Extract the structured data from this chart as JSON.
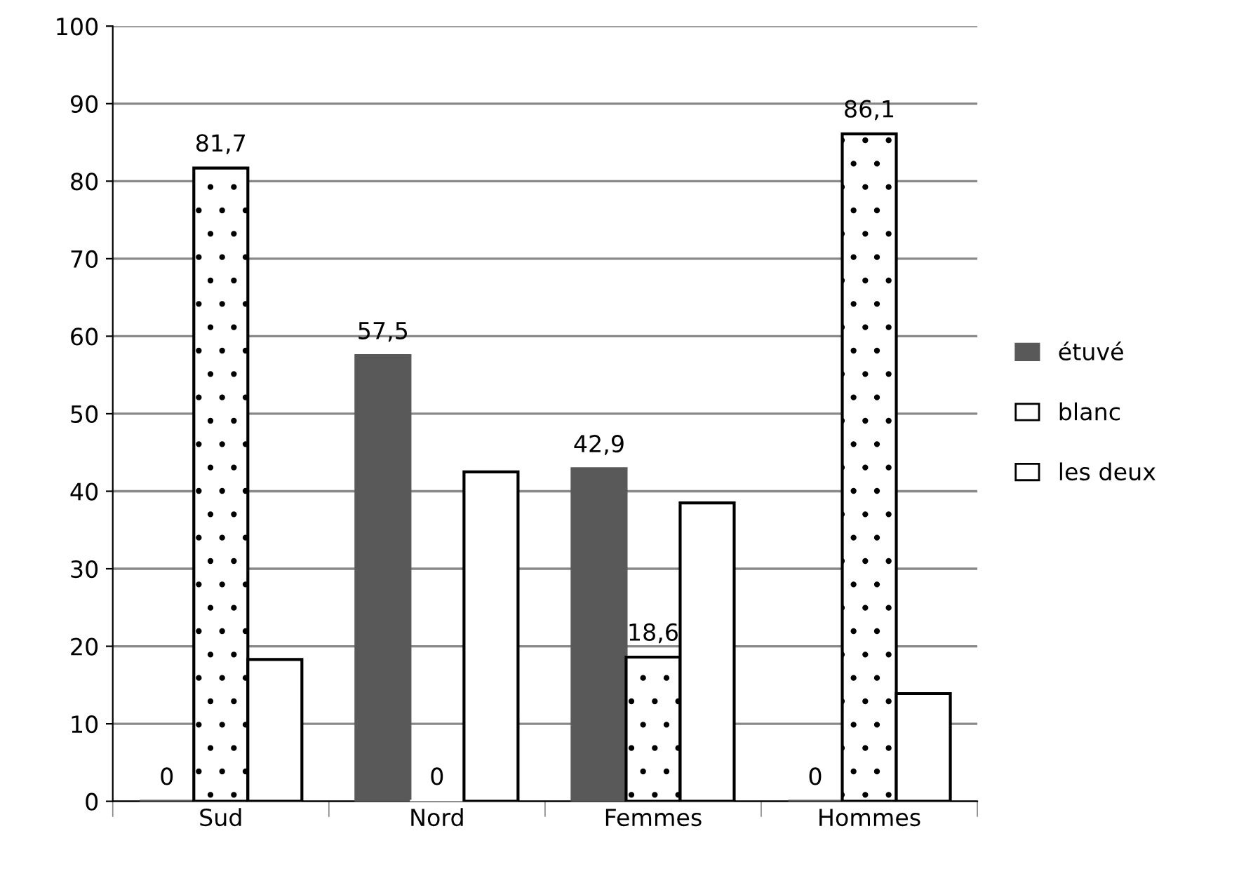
{
  "chart_data": {
    "type": "bar",
    "categories": [
      "Sud",
      "Nord",
      "Femmes",
      "Hommes"
    ],
    "series": [
      {
        "name": "étuvé",
        "color": "#595959",
        "values": [
          0,
          57.5,
          42.9,
          0
        ],
        "value_labels": [
          "0",
          "57,5",
          "42,9",
          "0"
        ]
      },
      {
        "name": "blanc",
        "color": "#ffffff",
        "values": [
          81.7,
          0,
          18.6,
          86.1
        ],
        "value_labels": [
          "81,7",
          "0",
          "18,6",
          "86,1"
        ]
      },
      {
        "name": "les deux",
        "color": "#ffffff",
        "values": [
          18.3,
          42.5,
          38.5,
          13.9
        ]
      }
    ],
    "ylim": [
      0,
      100
    ],
    "yticks": [
      0,
      10,
      20,
      30,
      40,
      50,
      60,
      70,
      80,
      90,
      100
    ],
    "grid": "y",
    "legend": "right"
  }
}
